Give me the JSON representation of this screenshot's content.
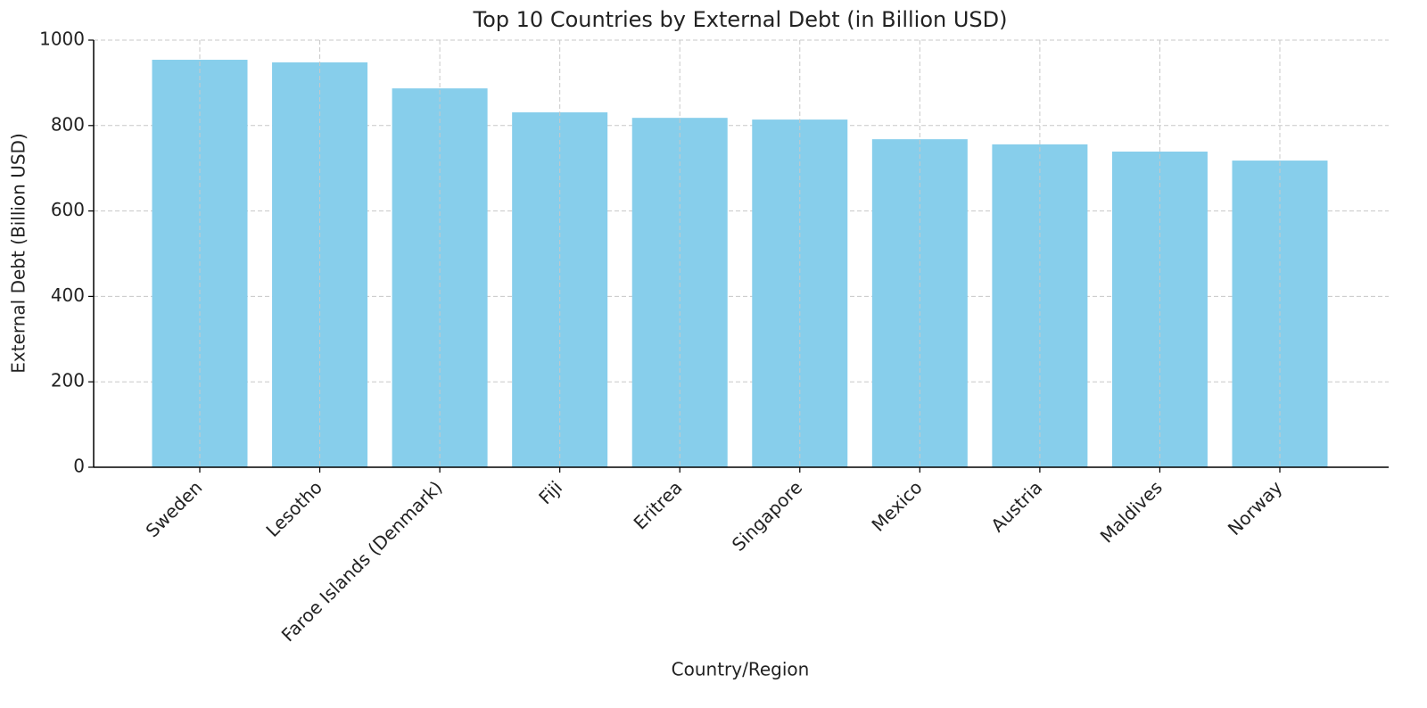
{
  "chart_data": {
    "type": "bar",
    "title": "Top 10 Countries by External Debt (in Billion USD)",
    "x_label": "Country/Region",
    "y_label": "External Debt (Billion USD)",
    "categories": [
      "Sweden",
      "Lesotho",
      "Faroe Islands (Denmark)",
      "Fiji",
      "Eritrea",
      "Singapore",
      "Mexico",
      "Austria",
      "Maldives",
      "Norway"
    ],
    "values": [
      954,
      948,
      887,
      831,
      818,
      814,
      768,
      756,
      739,
      718
    ],
    "color": "#87ceeb",
    "ylim": [
      0,
      1000
    ],
    "yticks": [
      0,
      200,
      400,
      600,
      800,
      1000
    ],
    "grid": true
  }
}
